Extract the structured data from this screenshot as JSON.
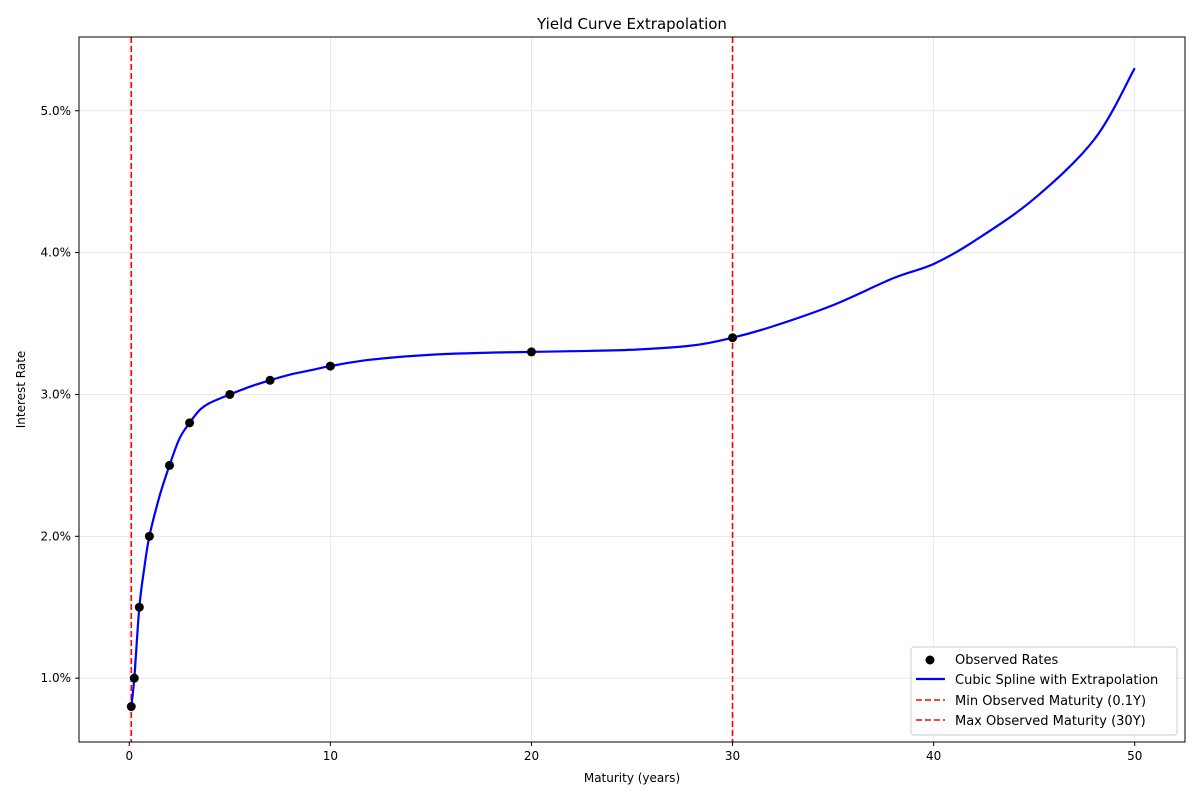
{
  "chart_data": {
    "type": "line",
    "title": "Yield Curve Extrapolation",
    "xlabel": "Maturity (years)",
    "ylabel": "Interest Rate",
    "xlim": [
      -2.5,
      52.5
    ],
    "ylim": [
      0.55,
      5.52
    ],
    "x_ticks": [
      0,
      10,
      20,
      30,
      40,
      50
    ],
    "x_tick_labels": [
      "0",
      "10",
      "20",
      "30",
      "40",
      "50"
    ],
    "y_ticks": [
      1.0,
      2.0,
      3.0,
      4.0,
      5.0
    ],
    "y_tick_labels": [
      "1.0%",
      "2.0%",
      "3.0%",
      "4.0%",
      "5.0%"
    ],
    "grid": true,
    "legend_position": "lower-right",
    "series": [
      {
        "name": "Observed Rates",
        "kind": "scatter",
        "color": "#000000",
        "x": [
          0.1,
          0.25,
          0.5,
          1,
          2,
          3,
          5,
          7,
          10,
          20,
          30
        ],
        "y": [
          0.8,
          1.0,
          1.5,
          2.0,
          2.5,
          2.8,
          3.0,
          3.1,
          3.2,
          3.3,
          3.4
        ]
      },
      {
        "name": "Cubic Spline with Extrapolation",
        "kind": "line",
        "color": "#0000ff",
        "x": [
          0.1,
          0.25,
          0.5,
          0.75,
          1,
          1.5,
          2,
          2.5,
          3,
          3.5,
          4,
          5,
          6,
          7,
          8,
          9,
          10,
          12,
          15,
          18,
          20,
          22,
          25,
          28,
          30,
          32,
          35,
          38,
          40,
          42,
          45,
          48,
          50
        ],
        "y": [
          0.8,
          1.0,
          1.5,
          1.78,
          2.0,
          2.28,
          2.5,
          2.69,
          2.8,
          2.89,
          2.94,
          3.0,
          3.055,
          3.1,
          3.14,
          3.17,
          3.2,
          3.245,
          3.28,
          3.295,
          3.3,
          3.305,
          3.315,
          3.345,
          3.4,
          3.48,
          3.63,
          3.82,
          3.92,
          4.08,
          4.38,
          4.8,
          5.3
        ]
      },
      {
        "name": "Min Observed Maturity (0.1Y)",
        "kind": "vline",
        "color": "#ff0000",
        "x": 0.1
      },
      {
        "name": "Max Observed Maturity (30Y)",
        "kind": "vline",
        "color": "#ff0000",
        "x": 30
      }
    ]
  }
}
